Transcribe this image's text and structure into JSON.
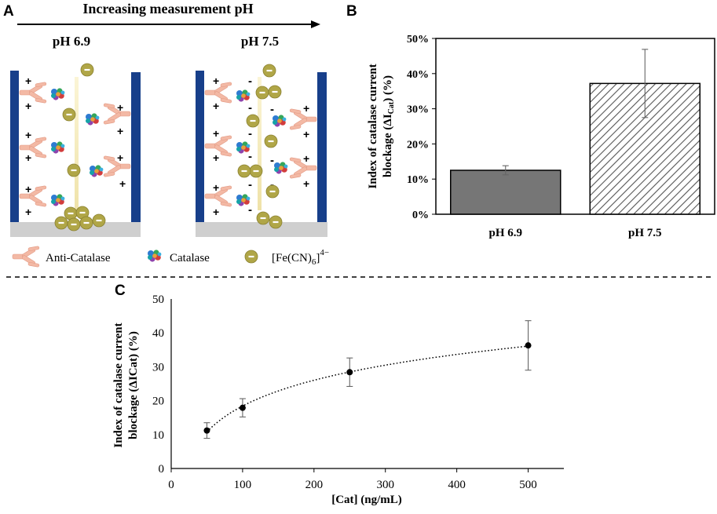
{
  "panel_a": {
    "label": "A",
    "arrow_caption": "Increasing measurement pH",
    "left_title": "pH 6.9",
    "right_title": "pH 7.5",
    "legend": {
      "antibody": "Anti-Catalase",
      "catalase": "Catalase",
      "ion_base": "[Fe(CN)",
      "ion_sub": "6",
      "ion_close": "]",
      "ion_sup": "4−"
    },
    "plus": "+",
    "minus": "-",
    "colors": {
      "electrode": "#173f8a",
      "substrate": "#cfcfcf",
      "ion": "#b3a94a",
      "antibody": "#f3b9a5",
      "flux": "#f4ecc0"
    }
  },
  "panel_b_label": "B",
  "panel_c_label": "C",
  "chart_data": [
    {
      "id": "B",
      "type": "bar",
      "categories": [
        "pH 6.9",
        "pH 7.5"
      ],
      "values": [
        12.5,
        37.2
      ],
      "errors": [
        1.3,
        9.7
      ],
      "fills": [
        "solid-gray",
        "hatched"
      ],
      "ylabel_line1": "Index of catalase current",
      "ylabel_line2_pre": "blockage (ΔI",
      "ylabel_line2_sub": "Cat",
      "ylabel_line2_post": ") (%)",
      "ylim": [
        0,
        50
      ],
      "yticks": [
        0,
        10,
        20,
        30,
        40,
        50
      ],
      "ytick_labels": [
        "0%",
        "10%",
        "20%",
        "30%",
        "40%",
        "50%"
      ],
      "colors": {
        "bar1": "#767676",
        "hatch": "#555555"
      }
    },
    {
      "id": "C",
      "type": "scatter",
      "x": [
        50,
        100,
        250,
        500
      ],
      "y": [
        11.2,
        17.9,
        28.4,
        36.3
      ],
      "errors": [
        2.3,
        2.7,
        4.2,
        7.3
      ],
      "trendline": "logarithmic (dotted)",
      "xlabel": "[Cat] (ng/mL)",
      "ylabel_line1": "Index of catalase current",
      "ylabel_line2": "blockage (ΔICat) (%)",
      "xlim": [
        0,
        550
      ],
      "ylim": [
        0,
        50
      ],
      "xticks": [
        0,
        100,
        200,
        300,
        400,
        500
      ],
      "yticks": [
        0,
        10,
        20,
        30,
        40,
        50
      ],
      "xtick_labels": [
        "0",
        "100",
        "200",
        "300",
        "400",
        "500"
      ],
      "ytick_labels": [
        "0",
        "10",
        "20",
        "30",
        "40",
        "50"
      ]
    }
  ]
}
